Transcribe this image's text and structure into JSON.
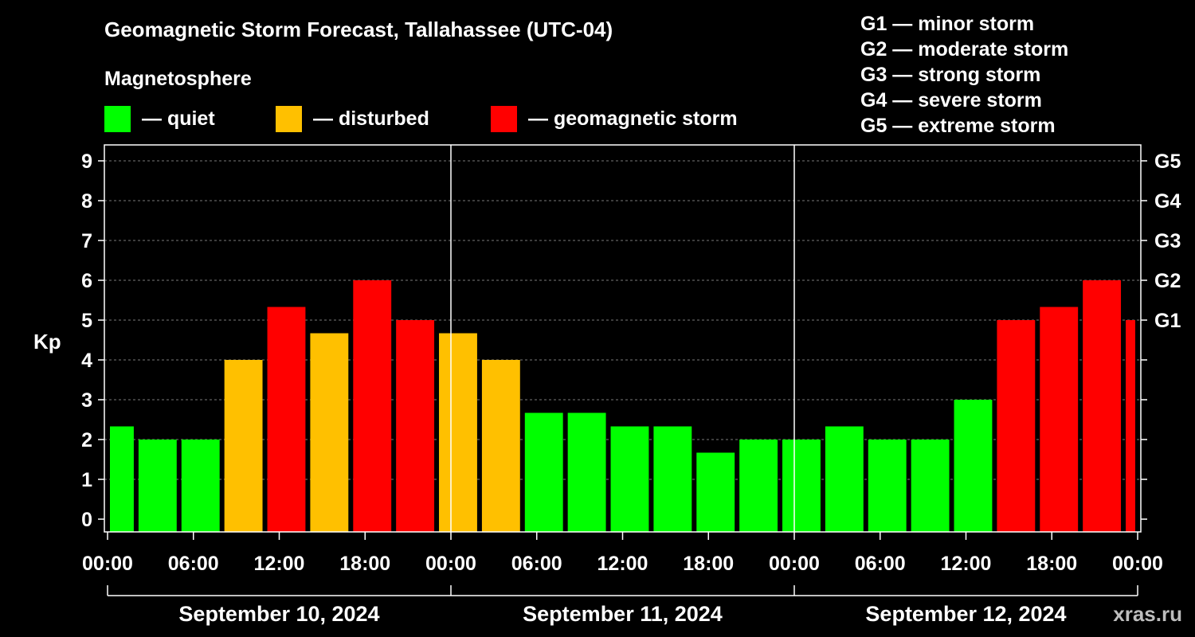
{
  "chart_data": {
    "type": "bar",
    "title": "Geomagnetic Storm Forecast, Tallahassee (UTC-04)",
    "ylabel": "Kp",
    "ylim": [
      0,
      9
    ],
    "yticks": [
      "0",
      "1",
      "2",
      "3",
      "4",
      "5",
      "6",
      "7",
      "8",
      "9"
    ],
    "right_ticks": [
      {
        "kp": 5,
        "label": "G1"
      },
      {
        "kp": 6,
        "label": "G2"
      },
      {
        "kp": 7,
        "label": "G3"
      },
      {
        "kp": 8,
        "label": "G4"
      },
      {
        "kp": 9,
        "label": "G5"
      }
    ],
    "xlim_hours": [
      0,
      72
    ],
    "xticks": [
      {
        "hour": 0,
        "label": "00:00"
      },
      {
        "hour": 6,
        "label": "06:00"
      },
      {
        "hour": 12,
        "label": "12:00"
      },
      {
        "hour": 18,
        "label": "18:00"
      },
      {
        "hour": 24,
        "label": "00:00"
      },
      {
        "hour": 30,
        "label": "06:00"
      },
      {
        "hour": 36,
        "label": "12:00"
      },
      {
        "hour": 42,
        "label": "18:00"
      },
      {
        "hour": 48,
        "label": "00:00"
      },
      {
        "hour": 54,
        "label": "06:00"
      },
      {
        "hour": 60,
        "label": "12:00"
      },
      {
        "hour": 66,
        "label": "18:00"
      },
      {
        "hour": 72,
        "label": "00:00"
      }
    ],
    "days": [
      {
        "label": "September 10, 2024",
        "start_hour": 0,
        "end_hour": 24
      },
      {
        "label": "September 11, 2024",
        "start_hour": 24,
        "end_hour": 48
      },
      {
        "label": "September 12, 2024",
        "start_hour": 48,
        "end_hour": 72
      }
    ],
    "bars": [
      {
        "start_hour": 0,
        "end_hour": 2,
        "kp": 2.33,
        "level": "quiet"
      },
      {
        "start_hour": 2,
        "end_hour": 5,
        "kp": 2.0,
        "level": "quiet"
      },
      {
        "start_hour": 5,
        "end_hour": 8,
        "kp": 2.0,
        "level": "quiet"
      },
      {
        "start_hour": 8,
        "end_hour": 11,
        "kp": 4.0,
        "level": "disturbed"
      },
      {
        "start_hour": 11,
        "end_hour": 14,
        "kp": 5.33,
        "level": "storm"
      },
      {
        "start_hour": 14,
        "end_hour": 17,
        "kp": 4.67,
        "level": "disturbed"
      },
      {
        "start_hour": 17,
        "end_hour": 20,
        "kp": 6.0,
        "level": "storm"
      },
      {
        "start_hour": 20,
        "end_hour": 23,
        "kp": 5.0,
        "level": "storm"
      },
      {
        "start_hour": 23,
        "end_hour": 26,
        "kp": 4.67,
        "level": "disturbed"
      },
      {
        "start_hour": 26,
        "end_hour": 29,
        "kp": 4.0,
        "level": "disturbed"
      },
      {
        "start_hour": 29,
        "end_hour": 32,
        "kp": 2.67,
        "level": "quiet"
      },
      {
        "start_hour": 32,
        "end_hour": 35,
        "kp": 2.67,
        "level": "quiet"
      },
      {
        "start_hour": 35,
        "end_hour": 38,
        "kp": 2.33,
        "level": "quiet"
      },
      {
        "start_hour": 38,
        "end_hour": 41,
        "kp": 2.33,
        "level": "quiet"
      },
      {
        "start_hour": 41,
        "end_hour": 44,
        "kp": 1.67,
        "level": "quiet"
      },
      {
        "start_hour": 44,
        "end_hour": 47,
        "kp": 2.0,
        "level": "quiet"
      },
      {
        "start_hour": 47,
        "end_hour": 50,
        "kp": 2.0,
        "level": "quiet"
      },
      {
        "start_hour": 50,
        "end_hour": 53,
        "kp": 2.33,
        "level": "quiet"
      },
      {
        "start_hour": 53,
        "end_hour": 56,
        "kp": 2.0,
        "level": "quiet"
      },
      {
        "start_hour": 56,
        "end_hour": 59,
        "kp": 2.0,
        "level": "quiet"
      },
      {
        "start_hour": 59,
        "end_hour": 62,
        "kp": 3.0,
        "level": "quiet"
      },
      {
        "start_hour": 62,
        "end_hour": 65,
        "kp": 5.0,
        "level": "storm"
      },
      {
        "start_hour": 65,
        "end_hour": 68,
        "kp": 5.33,
        "level": "storm"
      },
      {
        "start_hour": 68,
        "end_hour": 71,
        "kp": 6.0,
        "level": "storm"
      },
      {
        "start_hour": 71,
        "end_hour": 72,
        "kp": 5.0,
        "level": "storm"
      }
    ],
    "grid": true
  },
  "legend": {
    "title": "Magnetosphere",
    "items": [
      {
        "key": "quiet",
        "label": "— quiet",
        "color": "#00ff00"
      },
      {
        "key": "disturbed",
        "label": "— disturbed",
        "color": "#ffc000"
      },
      {
        "key": "storm",
        "label": "— geomagnetic storm",
        "color": "#ff0000"
      }
    ]
  },
  "gscale": [
    "G1 — minor storm",
    "G2 — moderate storm",
    "G3 — strong storm",
    "G4 — severe storm",
    "G5 — extreme storm"
  ],
  "watermark": "xras.ru"
}
